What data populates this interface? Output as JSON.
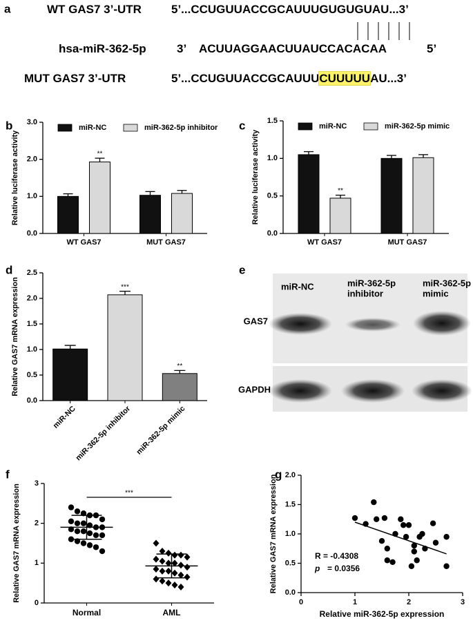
{
  "panel_a": {
    "label": "a",
    "wt": {
      "name": "WT GAS7 3’-UTR",
      "sequence": "5’...CCUGUUACCGCAUUUGUGUGUAU...3’"
    },
    "mirna": {
      "name": "hsa-miR-362-5p",
      "end3": "3’",
      "sequence": "ACUUAGGAACUUAUCCACACAA",
      "end5": "5’"
    },
    "mut": {
      "name": "MUT GAS7 3’-UTR",
      "before": "5’...CCUGUUACCGCAUUU",
      "mutated": "CUUUUU",
      "after": "AU...3’"
    }
  },
  "panel_e": {
    "label": "e",
    "lanes": [
      [
        "miR-NC"
      ],
      [
        "miR-362-5p",
        "inhibitor"
      ],
      [
        "miR-362-5p",
        "mimic"
      ]
    ],
    "rows": [
      "GAS7",
      "GAPDH"
    ]
  },
  "chart_data": [
    {
      "type": "grouped-bar",
      "panel": "b",
      "y_label": "Relative luciferase activity",
      "categories": [
        "WT GAS7",
        "MUT GAS7"
      ],
      "series": [
        {
          "name": "miR-NC",
          "color": "#111111",
          "values": [
            1.0,
            1.03
          ],
          "errors": [
            0.07,
            0.1
          ],
          "significance": [
            null,
            null
          ]
        },
        {
          "name": "miR-362-5p inhibitor",
          "color": "#d9d9d9",
          "values": [
            1.93,
            1.08
          ],
          "errors": [
            0.1,
            0.08
          ],
          "significance": [
            "**",
            null
          ]
        }
      ],
      "ylim": [
        0,
        3
      ],
      "yticks": [
        {
          "value": 0,
          "label": "0.0"
        },
        {
          "value": 1,
          "label": "1.0"
        },
        {
          "value": 2,
          "label": "2.0"
        },
        {
          "value": 3,
          "label": "3.0"
        }
      ]
    },
    {
      "type": "grouped-bar",
      "panel": "c",
      "y_label": "Relative luciferase activity",
      "categories": [
        "WT GAS7",
        "MUT GAS7"
      ],
      "series": [
        {
          "name": "miR-NC",
          "color": "#111111",
          "values": [
            1.05,
            1.0
          ],
          "errors": [
            0.04,
            0.04
          ],
          "significance": [
            null,
            null
          ]
        },
        {
          "name": "miR-362-5p mimic",
          "color": "#d9d9d9",
          "values": [
            0.47,
            1.01
          ],
          "errors": [
            0.04,
            0.04
          ],
          "significance": [
            "**",
            null
          ]
        }
      ],
      "ylim": [
        0,
        1.5
      ],
      "yticks": [
        {
          "value": 0,
          "label": "0.0"
        },
        {
          "value": 0.5,
          "label": "0.5"
        },
        {
          "value": 1,
          "label": "1.0"
        },
        {
          "value": 1.5,
          "label": "1.5"
        }
      ]
    },
    {
      "type": "bar",
      "panel": "d",
      "y_label": "Relative GAS7 mRNA expression",
      "categories": [
        "miR-NC",
        "miR-362-5p inhibitor",
        "miR-362-5p mimic"
      ],
      "values": [
        1.01,
        2.07,
        0.53
      ],
      "errors": [
        0.07,
        0.07,
        0.06
      ],
      "colors": [
        "#111111",
        "#d9d9d9",
        "#808080"
      ],
      "significance": [
        null,
        "***",
        "**"
      ],
      "ylim": [
        0,
        2.5
      ],
      "yticks": [
        {
          "value": 0,
          "label": "0.0"
        },
        {
          "value": 0.5,
          "label": "0.5"
        },
        {
          "value": 1,
          "label": "1.0"
        },
        {
          "value": 1.5,
          "label": "1.5"
        },
        {
          "value": 2,
          "label": "2.0"
        },
        {
          "value": 2.5,
          "label": "2.5"
        }
      ]
    },
    {
      "type": "strip",
      "panel": "f",
      "y_label": "Relative GAS7 mRNA expression",
      "groups": [
        {
          "name": "Normal",
          "marker": "circle",
          "mean": 1.9,
          "sd": 0.3,
          "values": [
            2.4,
            2.3,
            2.25,
            2.2,
            2.2,
            2.1,
            2.05,
            2.0,
            2.0,
            1.95,
            1.9,
            1.9,
            1.85,
            1.8,
            1.8,
            1.75,
            1.7,
            1.7,
            1.6,
            1.55,
            1.5,
            1.45,
            1.4,
            1.3
          ]
        },
        {
          "name": "AML",
          "marker": "diamond",
          "mean": 0.93,
          "sd": 0.3,
          "values": [
            1.5,
            1.3,
            1.25,
            1.2,
            1.2,
            1.15,
            1.1,
            1.05,
            1.0,
            1.0,
            0.95,
            0.9,
            0.85,
            0.8,
            0.8,
            0.75,
            0.7,
            0.65,
            0.6,
            0.55,
            0.5,
            0.45,
            0.4
          ]
        }
      ],
      "significance": "***",
      "ylim": [
        0,
        3
      ],
      "yticks": [
        0,
        1,
        2,
        3
      ]
    },
    {
      "type": "scatter",
      "panel": "g",
      "x_label": "Relative miR-362-5p expression",
      "y_label": "Relative GAS7 mRNA expression",
      "x": [
        1.0,
        1.2,
        1.35,
        1.4,
        1.5,
        1.55,
        1.6,
        1.6,
        1.7,
        1.75,
        1.85,
        1.9,
        1.95,
        2.0,
        2.05,
        2.1,
        2.1,
        2.15,
        2.2,
        2.25,
        2.3,
        2.45,
        2.5,
        2.7,
        2.7
      ],
      "y": [
        1.27,
        1.17,
        1.54,
        1.25,
        0.88,
        1.27,
        0.55,
        0.75,
        0.52,
        1.0,
        1.25,
        1.15,
        0.95,
        1.15,
        0.45,
        0.8,
        0.7,
        0.55,
        0.95,
        1.0,
        0.75,
        1.18,
        0.85,
        0.95,
        0.45
      ],
      "fit": {
        "x": [
          1.0,
          2.7
        ],
        "y": [
          1.2,
          0.66
        ]
      },
      "annotation": {
        "r": "R = -0.4308",
        "p_symbol": "p",
        "p_value": "= 0.0356"
      },
      "xlim": [
        0,
        3
      ],
      "xticks": [
        0,
        1,
        2,
        3
      ],
      "ylim": [
        0,
        2
      ],
      "yticks": [
        {
          "value": 0,
          "label": "0.0"
        },
        {
          "value": 0.5,
          "label": "0.5"
        },
        {
          "value": 1,
          "label": "1.0"
        },
        {
          "value": 1.5,
          "label": "1.5"
        },
        {
          "value": 2,
          "label": "2.0"
        }
      ]
    }
  ]
}
